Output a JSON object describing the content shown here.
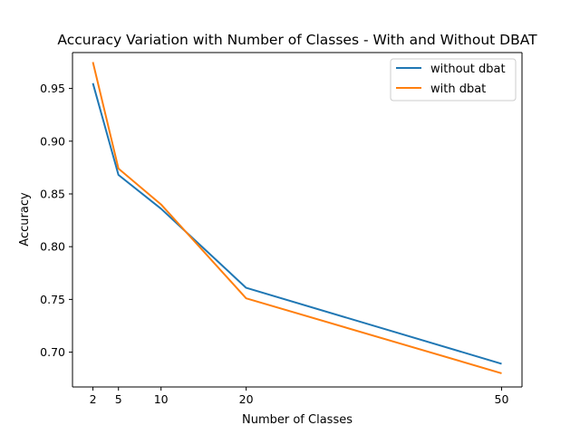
{
  "chart_data": {
    "type": "line",
    "title": "Accuracy Variation with Number of Classes - With and Without DBAT",
    "xlabel": "Number of Classes",
    "ylabel": "Accuracy",
    "x": [
      2,
      5,
      10,
      20,
      50
    ],
    "xticks": [
      "2",
      "5",
      "10",
      "20",
      "50"
    ],
    "yticks": [
      "0.70",
      "0.75",
      "0.80",
      "0.85",
      "0.90",
      "0.95"
    ],
    "xlim": [
      -0.4,
      52.4
    ],
    "ylim": [
      0.667,
      0.984
    ],
    "grid": false,
    "legend_position": "top-right",
    "series": [
      {
        "name": "without dbat",
        "color": "#1f77b4",
        "values": [
          0.955,
          0.868,
          0.836,
          0.761,
          0.689
        ]
      },
      {
        "name": "with dbat",
        "color": "#ff7f0e",
        "values": [
          0.975,
          0.874,
          0.84,
          0.751,
          0.68
        ]
      }
    ]
  }
}
